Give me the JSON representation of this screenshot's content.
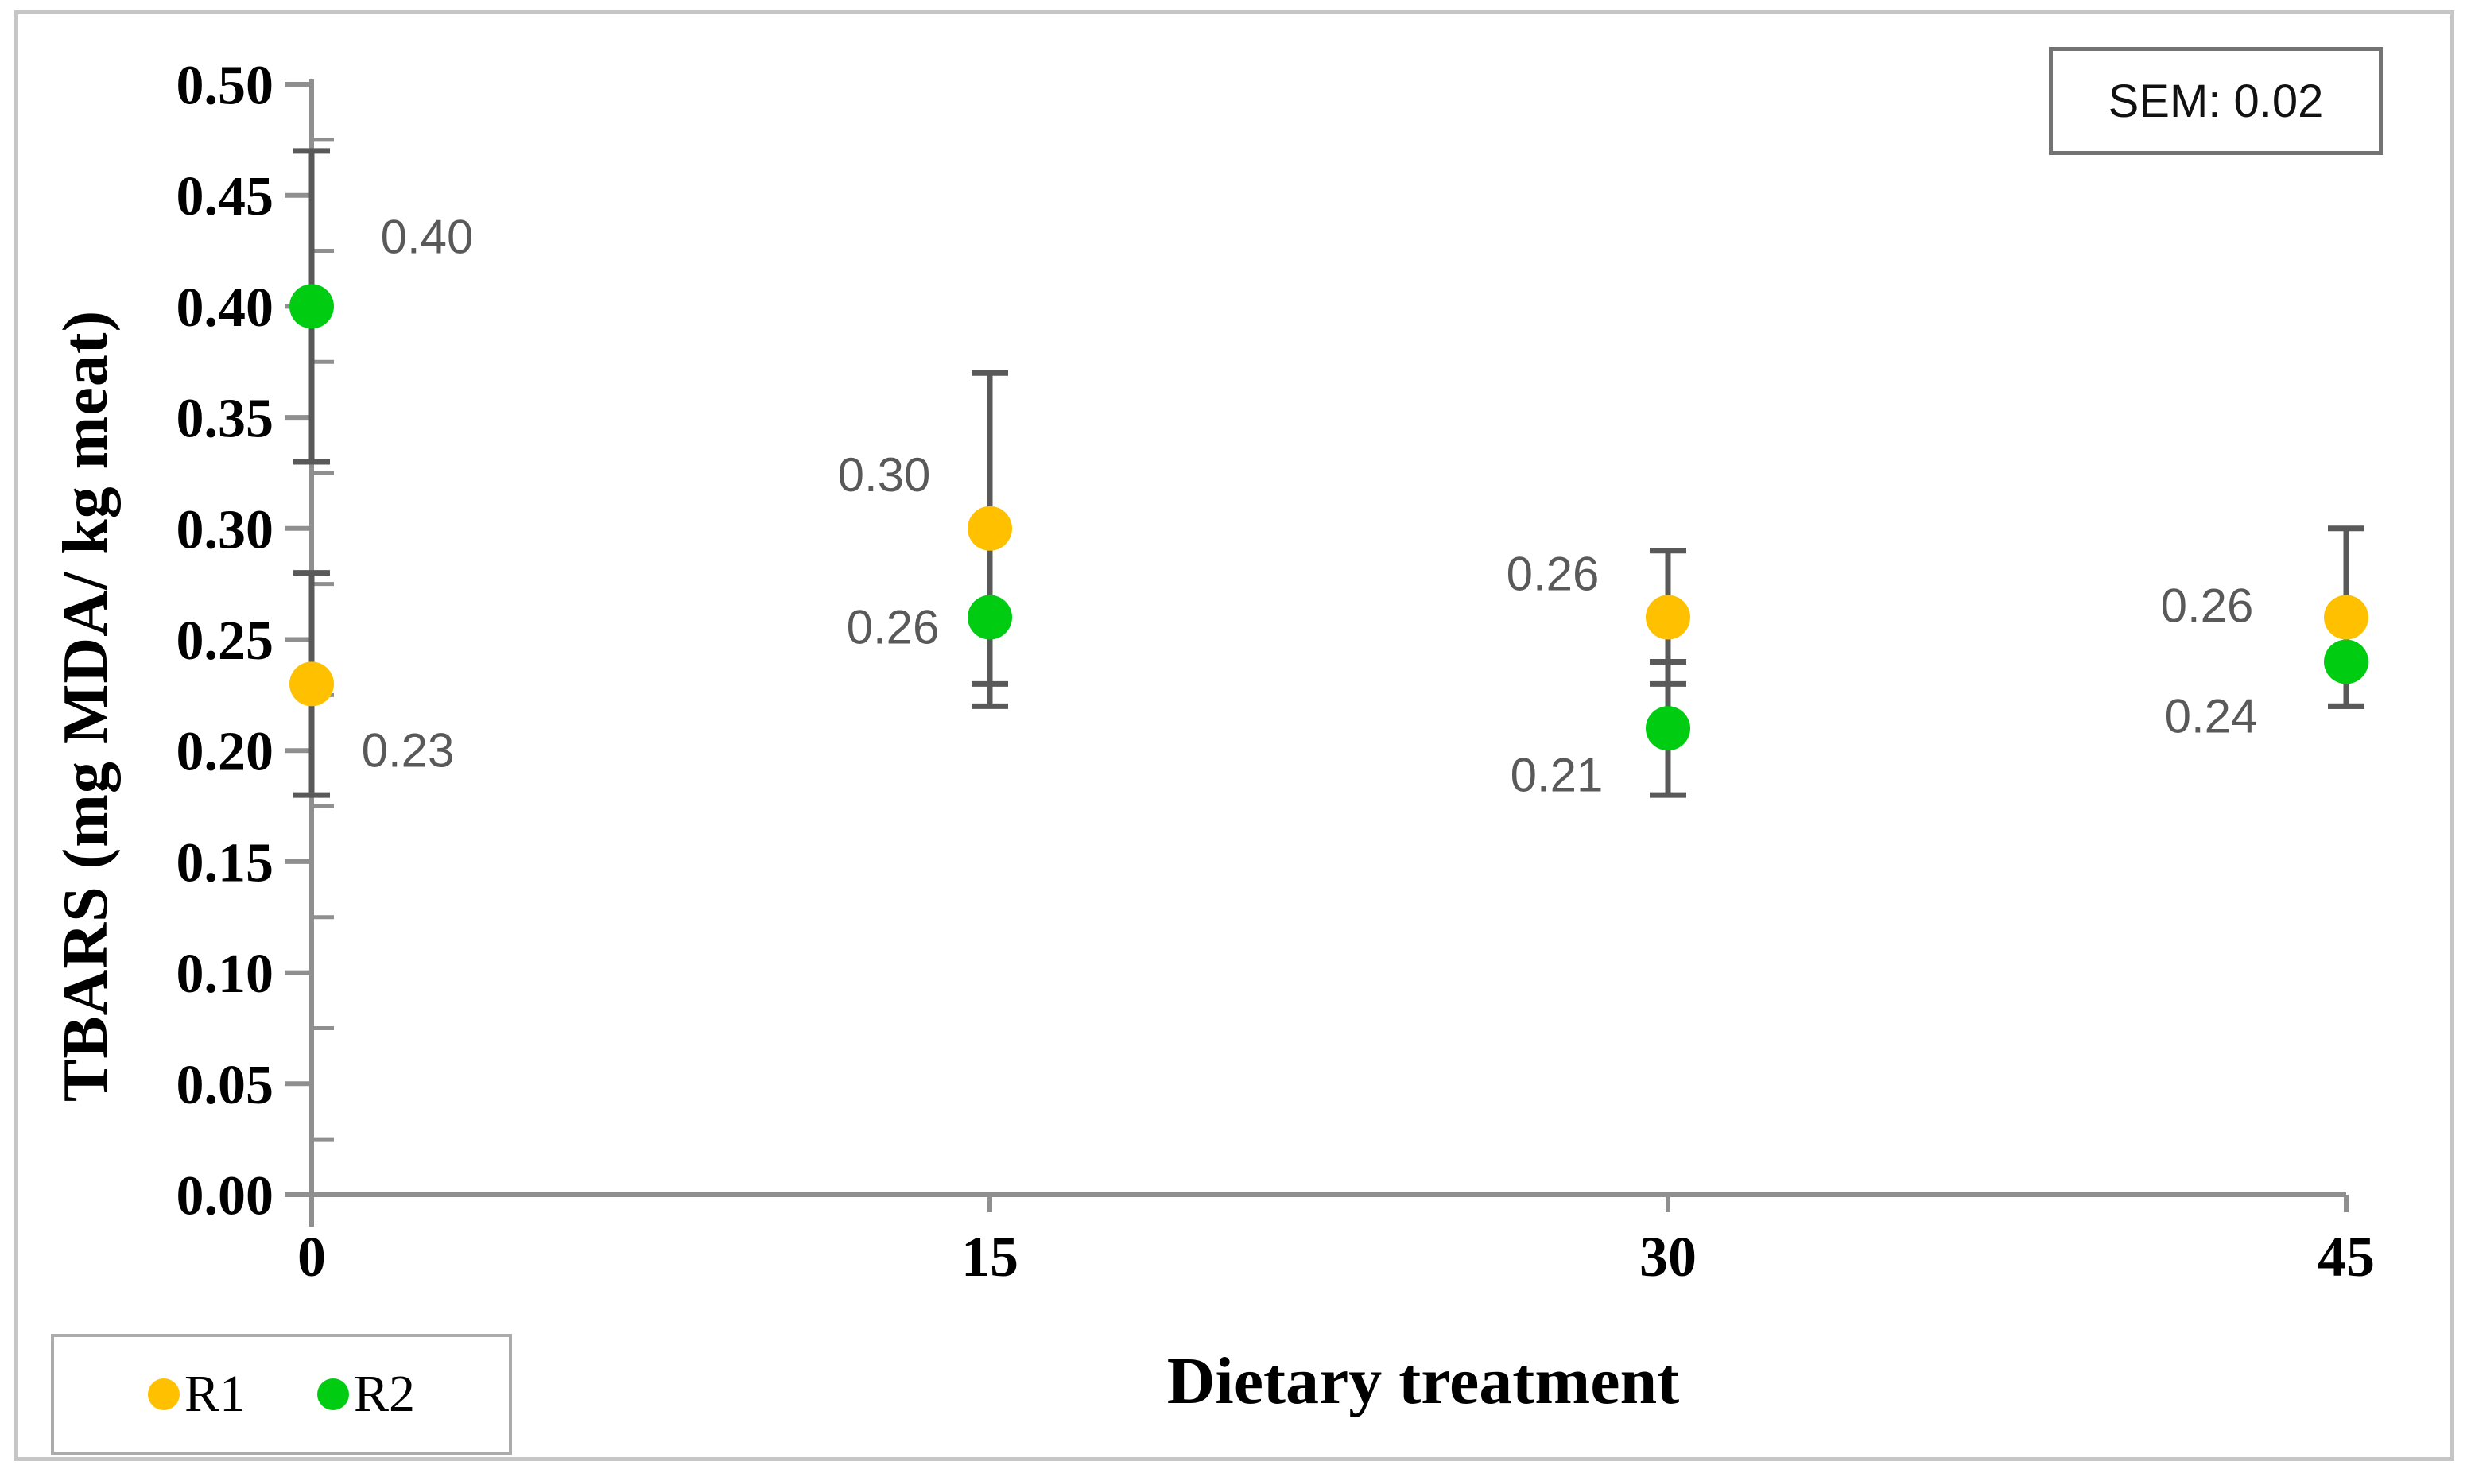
{
  "figure": {
    "y_axis_title": "TBARS (mg MDA/ kg meat)",
    "x_axis_title": "Dietary treatment",
    "sem_annotation": "SEM: 0.02"
  },
  "legend": {
    "position": "bottom-left",
    "items": [
      {
        "label": "R1",
        "color": "#FFC000"
      },
      {
        "label": "R2",
        "color": "#00CC11"
      }
    ]
  },
  "chart_data": {
    "type": "scatter",
    "title": "",
    "xlabel": "Dietary treatment",
    "ylabel": "TBARS (mg MDA/ kg meat)",
    "categories": [
      0,
      15,
      30,
      45
    ],
    "x_tick_labels": [
      "0",
      "15",
      "30",
      "45"
    ],
    "ylim": [
      0,
      0.5
    ],
    "y_major_step": 0.05,
    "y_minor_step": 0.025,
    "y_tick_labels": [
      "0.00",
      "0.05",
      "0.10",
      "0.15",
      "0.20",
      "0.25",
      "0.30",
      "0.35",
      "0.40",
      "0.45",
      "0.50"
    ],
    "grid": false,
    "legend_position": "bottom-left",
    "annotation": "SEM: 0.02",
    "axis_color": "#8f8f8f",
    "error_bar_color": "#595959",
    "data_label_color": "#595959",
    "series": [
      {
        "name": "R1",
        "color": "#FFC000",
        "values": [
          0.23,
          0.3,
          0.26,
          0.26
        ],
        "point_labels": [
          "0.23",
          "0.30",
          "0.26",
          "0.26"
        ],
        "error_plus": [
          0.05,
          0.07,
          0.03,
          0.04
        ],
        "error_minus": [
          0.05,
          0.07,
          0.03,
          0.04
        ]
      },
      {
        "name": "R2",
        "color": "#00CC11",
        "values": [
          0.4,
          0.26,
          0.21,
          0.24
        ],
        "point_labels": [
          "0.40",
          "0.26",
          "0.21",
          "0.24"
        ],
        "error_plus": [
          0.07,
          0.04,
          0.03,
          0.02
        ],
        "error_minus": [
          0.07,
          0.04,
          0.03,
          0.02
        ]
      }
    ]
  }
}
